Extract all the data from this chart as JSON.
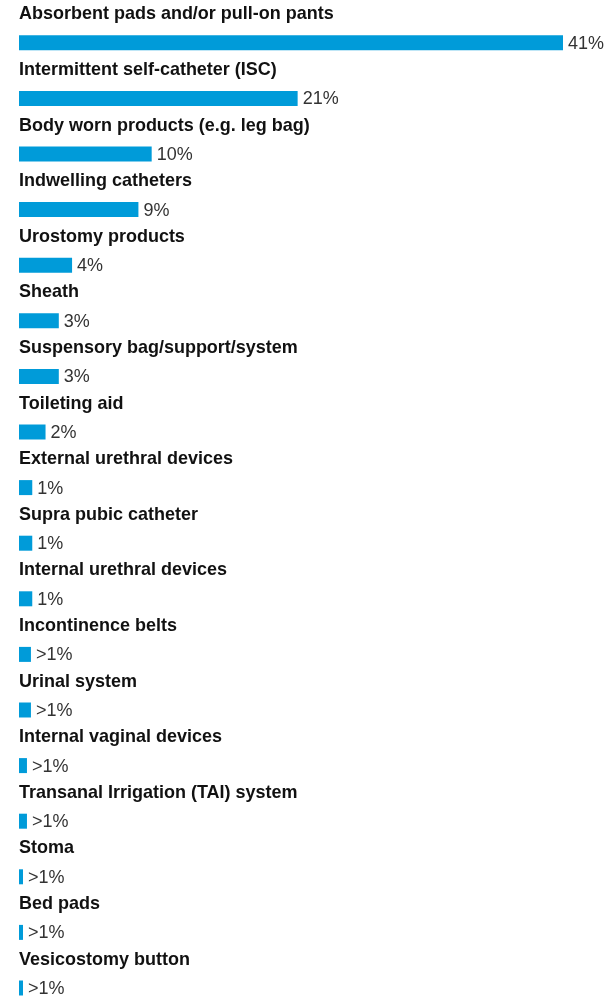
{
  "chart_data": {
    "type": "bar",
    "orientation": "horizontal",
    "color": "#009bd9",
    "categories": [
      "Absorbent pads and/or pull-on pants",
      "Intermittent self-catheter (ISC)",
      "Body worn products (e.g. leg bag)",
      "Indwelling catheters",
      "Urostomy products",
      "Sheath",
      "Suspensory bag/support/system",
      "Toileting aid",
      "External urethral devices",
      "Supra pubic catheter",
      "Internal urethral devices",
      "Incontinence belts",
      "Urinal system",
      "Internal vaginal devices",
      "Transanal Irrigation (TAI) system",
      "Stoma",
      "Bed pads",
      "Vesicostomy button"
    ],
    "values": [
      41,
      21,
      10,
      9,
      4,
      3,
      3,
      2,
      1,
      1,
      1,
      0.9,
      0.9,
      0.6,
      0.6,
      0.3,
      0.3,
      0.3
    ],
    "value_labels": [
      "41%",
      "21%",
      "10%",
      "9%",
      "4%",
      "3%",
      "3%",
      "2%",
      "1%",
      "1%",
      "1%",
      ">1%",
      ">1%",
      ">1%",
      ">1%",
      ">1%",
      ">1%",
      ">1%"
    ],
    "xlim": [
      0,
      41
    ]
  }
}
